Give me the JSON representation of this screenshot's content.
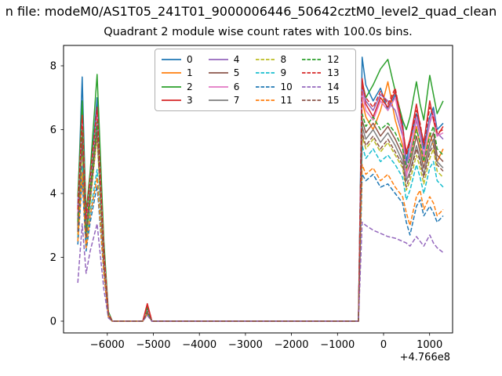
{
  "figure": {
    "suptitle": "n file: modeM0/AS1T05_241T01_9000006446_50642cztM0_level2_quad_clean"
  },
  "chart_data": {
    "type": "line",
    "title": "Quadrant 2 module wise count rates with 100.0s bins.",
    "xlabel": "",
    "ylabel": "",
    "x_offset_label": "+4.766e8",
    "xlim": [
      -6950,
      1500
    ],
    "ylim": [
      -0.368,
      8.638
    ],
    "grid": false,
    "legend": {
      "position": "upper center",
      "columns": 4,
      "order": "column-major"
    },
    "x_ticks": {
      "values": [
        -6000,
        -5000,
        -4000,
        -3000,
        -2000,
        -1000,
        0,
        1000
      ],
      "labels": [
        "−6000",
        "−5000",
        "−4000",
        "−3000",
        "−2000",
        "−1000",
        "0",
        "1000"
      ]
    },
    "y_ticks": {
      "values": [
        0,
        2,
        4,
        6,
        8
      ],
      "labels": [
        "0",
        "2",
        "4",
        "6",
        "8"
      ]
    },
    "x": [
      -6640,
      -6545,
      -6460,
      -6370,
      -6220,
      -6075,
      -5975,
      -5890,
      -5230,
      -5130,
      -5030,
      -545,
      -465,
      -385,
      -225,
      -65,
      95,
      255,
      415,
      495,
      575,
      715,
      795,
      875,
      1005,
      1085,
      1165,
      1295
    ],
    "series": [
      {
        "name": "0",
        "color": "#1f77b4",
        "style": "solid",
        "values": [
          3.6,
          7.65,
          3.1,
          4.4,
          7.0,
          2.2,
          0.25,
          0,
          0,
          0.4,
          0,
          0,
          8.27,
          7.4,
          6.9,
          7.3,
          6.6,
          7.1,
          6.2,
          5.0,
          5.6,
          6.5,
          6.0,
          5.4,
          6.4,
          6.7,
          6.0,
          6.2
        ]
      },
      {
        "name": "1",
        "color": "#ff7f0e",
        "style": "solid",
        "values": [
          3.0,
          6.1,
          2.8,
          4.0,
          6.4,
          1.9,
          0.2,
          0,
          0,
          0.3,
          0,
          0,
          6.9,
          6.4,
          6.0,
          6.6,
          7.5,
          6.3,
          5.5,
          4.7,
          5.1,
          6.1,
          5.5,
          5.0,
          5.9,
          5.5,
          5.0,
          5.4
        ]
      },
      {
        "name": "2",
        "color": "#2ca02c",
        "style": "solid",
        "values": [
          3.9,
          6.9,
          3.4,
          4.7,
          7.73,
          2.5,
          0.3,
          0,
          0,
          0.45,
          0,
          0,
          7.5,
          7.0,
          7.4,
          7.9,
          8.2,
          7.2,
          6.3,
          6.0,
          6.4,
          7.5,
          6.8,
          6.3,
          7.7,
          7.1,
          6.5,
          6.9
        ]
      },
      {
        "name": "3",
        "color": "#d62728",
        "style": "solid",
        "values": [
          3.3,
          6.35,
          3.0,
          4.3,
          6.6,
          2.1,
          0.22,
          0,
          0,
          0.55,
          0,
          0,
          7.6,
          6.8,
          6.4,
          7.0,
          6.7,
          7.2,
          6.0,
          5.3,
          5.7,
          6.8,
          6.1,
          5.6,
          6.9,
          6.3,
          5.8,
          6.1
        ]
      },
      {
        "name": "4",
        "color": "#9467bd",
        "style": "solid",
        "values": [
          3.2,
          6.0,
          2.9,
          4.2,
          6.45,
          2.0,
          0.2,
          0,
          0,
          0.32,
          0,
          0,
          7.3,
          6.9,
          6.6,
          7.1,
          6.9,
          6.6,
          5.8,
          4.9,
          5.3,
          6.3,
          5.8,
          5.2,
          6.2,
          6.6,
          5.9,
          5.7
        ]
      },
      {
        "name": "5",
        "color": "#8c564b",
        "style": "solid",
        "values": [
          2.9,
          5.8,
          2.7,
          3.9,
          6.1,
          1.8,
          0.18,
          0,
          0,
          0.28,
          0,
          0,
          6.3,
          5.9,
          6.2,
          5.8,
          6.1,
          5.7,
          5.2,
          4.6,
          4.9,
          5.8,
          5.3,
          4.8,
          5.6,
          5.9,
          5.2,
          5.0
        ]
      },
      {
        "name": "6",
        "color": "#e377c2",
        "style": "solid",
        "values": [
          3.4,
          6.2,
          3.1,
          4.4,
          6.5,
          2.1,
          0.22,
          0,
          0,
          0.33,
          0,
          0,
          7.2,
          6.6,
          6.3,
          6.9,
          6.6,
          7.0,
          5.9,
          4.5,
          5.2,
          6.4,
          5.9,
          5.1,
          6.3,
          6.5,
          5.8,
          5.9
        ]
      },
      {
        "name": "7",
        "color": "#7f7f7f",
        "style": "solid",
        "values": [
          2.8,
          5.7,
          2.6,
          3.8,
          6.0,
          1.8,
          0.17,
          0,
          0,
          0.27,
          0,
          0,
          6.1,
          5.7,
          6.0,
          5.6,
          5.9,
          5.5,
          5.0,
          4.4,
          4.7,
          5.5,
          5.1,
          4.6,
          5.4,
          5.7,
          5.0,
          4.8
        ]
      },
      {
        "name": "8",
        "color": "#bcbd22",
        "style": "dashed",
        "values": [
          2.7,
          5.5,
          2.5,
          3.7,
          5.8,
          1.7,
          0.16,
          0,
          0,
          0.26,
          0,
          0,
          5.8,
          5.4,
          5.7,
          5.3,
          5.6,
          5.2,
          4.8,
          4.1,
          4.4,
          5.2,
          4.8,
          4.3,
          5.1,
          5.4,
          4.7,
          4.5
        ]
      },
      {
        "name": "9",
        "color": "#17becf",
        "style": "dashed",
        "values": [
          2.6,
          4.85,
          2.4,
          3.4,
          4.75,
          1.6,
          0.15,
          0,
          0,
          0.25,
          0,
          0,
          5.5,
          5.1,
          5.4,
          5.0,
          5.2,
          4.9,
          4.5,
          3.8,
          4.1,
          4.9,
          4.5,
          4.0,
          4.8,
          5.0,
          4.4,
          4.2
        ]
      },
      {
        "name": "10",
        "color": "#1f77b4",
        "style": "dashed",
        "values": [
          2.4,
          4.45,
          2.2,
          3.1,
          4.25,
          1.5,
          0.14,
          0,
          0,
          0.22,
          0,
          0,
          4.6,
          4.4,
          4.6,
          4.2,
          4.3,
          4.0,
          3.7,
          3.1,
          2.7,
          3.6,
          3.8,
          3.3,
          3.6,
          3.4,
          3.1,
          3.3
        ]
      },
      {
        "name": "11",
        "color": "#ff7f0e",
        "style": "dashed",
        "values": [
          2.5,
          4.65,
          2.3,
          3.3,
          4.5,
          1.5,
          0.14,
          0,
          0,
          0.23,
          0,
          0,
          4.9,
          4.6,
          4.8,
          4.4,
          4.6,
          4.2,
          3.9,
          3.4,
          3.0,
          3.9,
          4.1,
          3.5,
          3.9,
          3.7,
          3.3,
          3.5
        ]
      },
      {
        "name": "12",
        "color": "#2ca02c",
        "style": "dashed",
        "values": [
          3.1,
          6.0,
          2.8,
          4.1,
          6.25,
          1.9,
          0.19,
          0,
          0,
          0.31,
          0,
          0,
          6.5,
          6.1,
          6.4,
          6.0,
          6.2,
          5.9,
          5.4,
          4.8,
          5.1,
          6.0,
          5.6,
          5.0,
          5.8,
          6.1,
          5.4,
          5.2
        ]
      },
      {
        "name": "13",
        "color": "#d62728",
        "style": "dashed",
        "values": [
          3.5,
          6.45,
          3.2,
          4.5,
          6.7,
          2.2,
          0.23,
          0,
          0,
          0.5,
          0,
          0,
          7.4,
          7.0,
          6.7,
          7.2,
          6.8,
          7.3,
          6.1,
          5.2,
          5.6,
          6.6,
          6.2,
          5.5,
          6.7,
          6.4,
          5.9,
          6.0
        ]
      },
      {
        "name": "14",
        "color": "#9467bd",
        "style": "dashed",
        "values": [
          1.2,
          3.05,
          1.5,
          2.2,
          3.05,
          1.0,
          0.1,
          0,
          0,
          0.18,
          0,
          0,
          3.1,
          3.0,
          2.85,
          2.75,
          2.65,
          2.6,
          2.5,
          2.45,
          2.35,
          2.65,
          2.5,
          2.35,
          2.7,
          2.45,
          2.3,
          2.15
        ]
      },
      {
        "name": "15",
        "color": "#8c564b",
        "style": "dashed",
        "values": [
          2.8,
          5.6,
          2.6,
          3.8,
          5.9,
          1.75,
          0.16,
          0,
          0,
          0.27,
          0,
          0,
          5.9,
          5.5,
          5.8,
          5.4,
          5.7,
          5.3,
          4.9,
          4.2,
          4.6,
          5.4,
          5.0,
          4.5,
          5.3,
          5.5,
          4.9,
          4.7
        ]
      }
    ]
  }
}
